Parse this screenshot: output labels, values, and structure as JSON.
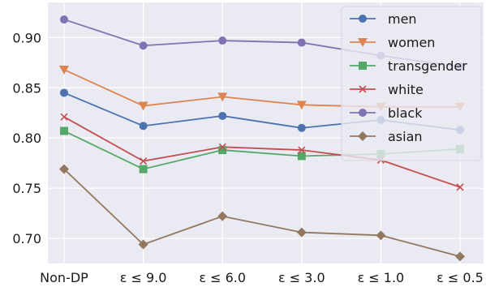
{
  "chart_data": {
    "type": "line",
    "categories": [
      "Non-DP",
      "ε ≤ 9.0",
      "ε ≤ 6.0",
      "ε ≤ 3.0",
      "ε ≤ 1.0",
      "ε ≤ 0.5"
    ],
    "ylim": [
      0.675,
      0.935
    ],
    "yticks": [
      0.7,
      0.75,
      0.8,
      0.85,
      0.9
    ],
    "ytick_labels": [
      "0.70",
      "0.75",
      "0.80",
      "0.85",
      "0.90"
    ],
    "grid": true,
    "legend_position": "top-right",
    "title": "",
    "xlabel": "",
    "ylabel": "",
    "series": [
      {
        "name": "men",
        "color": "#4c72b0",
        "marker": "circle",
        "values": [
          0.845,
          0.812,
          0.822,
          0.81,
          0.818,
          0.808
        ]
      },
      {
        "name": "women",
        "color": "#dd8452",
        "marker": "triangle-down",
        "values": [
          0.868,
          0.832,
          0.841,
          0.833,
          0.831,
          0.831
        ]
      },
      {
        "name": "transgender",
        "color": "#55a868",
        "marker": "square",
        "values": [
          0.807,
          0.769,
          0.788,
          0.782,
          0.784,
          0.789
        ]
      },
      {
        "name": "white",
        "color": "#c44e52",
        "marker": "x",
        "values": [
          0.821,
          0.777,
          0.791,
          0.788,
          0.778,
          0.751
        ]
      },
      {
        "name": "black",
        "color": "#8172b3",
        "marker": "circle",
        "values": [
          0.918,
          0.892,
          0.897,
          0.895,
          0.882,
          0.871
        ]
      },
      {
        "name": "asian",
        "color": "#937860",
        "marker": "diamond",
        "values": [
          0.769,
          0.694,
          0.722,
          0.706,
          0.703,
          0.682
        ]
      }
    ]
  }
}
